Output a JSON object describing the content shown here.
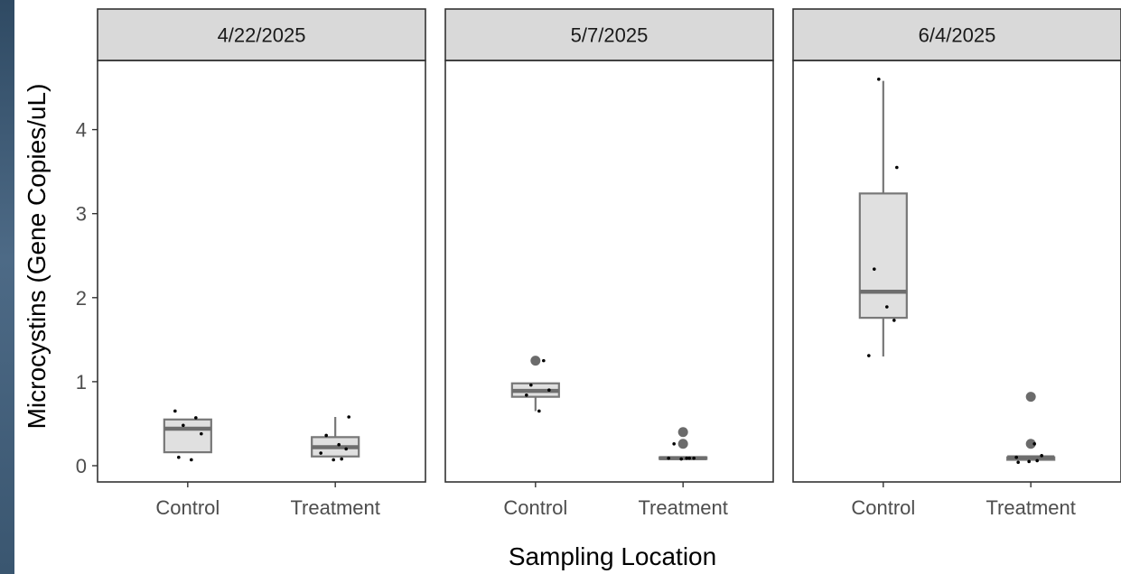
{
  "chart_data": {
    "type": "boxplot",
    "xlabel": "Sampling Location",
    "ylabel": "Microcystins (Gene Copies/uL)",
    "ylim": [
      -0.18,
      4.85
    ],
    "yticks": [
      0,
      1,
      2,
      3,
      4
    ],
    "categories": [
      "Control",
      "Treatment"
    ],
    "panels": [
      {
        "facet": "4/22/2025",
        "boxes": [
          {
            "category": "Control",
            "q1": 0.16,
            "median": 0.44,
            "q3": 0.55,
            "whisker_low": 0.16,
            "whisker_high": 0.55,
            "outliers": [],
            "points": [
              0.65,
              0.57,
              0.48,
              0.38,
              0.1,
              0.07
            ]
          },
          {
            "category": "Treatment",
            "q1": 0.11,
            "median": 0.22,
            "q3": 0.34,
            "whisker_low": 0.11,
            "whisker_high": 0.58,
            "outliers": [],
            "points": [
              0.58,
              0.36,
              0.25,
              0.2,
              0.15,
              0.08,
              0.07
            ]
          }
        ]
      },
      {
        "facet": "5/7/2025",
        "boxes": [
          {
            "category": "Control",
            "q1": 0.82,
            "median": 0.89,
            "q3": 0.98,
            "whisker_low": 0.65,
            "whisker_high": 0.98,
            "outliers": [
              1.25
            ],
            "points": [
              1.25,
              0.96,
              0.9,
              0.84,
              0.65
            ]
          },
          {
            "category": "Treatment",
            "q1": 0.08,
            "median": 0.09,
            "q3": 0.1,
            "whisker_low": 0.08,
            "whisker_high": 0.1,
            "outliers": [
              0.4,
              0.26
            ],
            "points": [
              0.26,
              0.09,
              0.09,
              0.09,
              0.09,
              0.08
            ]
          }
        ]
      },
      {
        "facet": "6/4/2025",
        "boxes": [
          {
            "category": "Control",
            "q1": 1.76,
            "median": 2.07,
            "q3": 3.24,
            "whisker_low": 1.3,
            "whisker_high": 4.58,
            "outliers": [],
            "points": [
              4.6,
              3.55,
              2.34,
              1.89,
              1.73,
              1.31
            ]
          },
          {
            "category": "Treatment",
            "q1": 0.07,
            "median": 0.1,
            "q3": 0.1,
            "whisker_low": 0.07,
            "whisker_high": 0.1,
            "outliers": [
              0.82,
              0.26
            ],
            "points": [
              0.26,
              0.12,
              0.1,
              0.06,
              0.05,
              0.04
            ]
          }
        ]
      }
    ]
  }
}
